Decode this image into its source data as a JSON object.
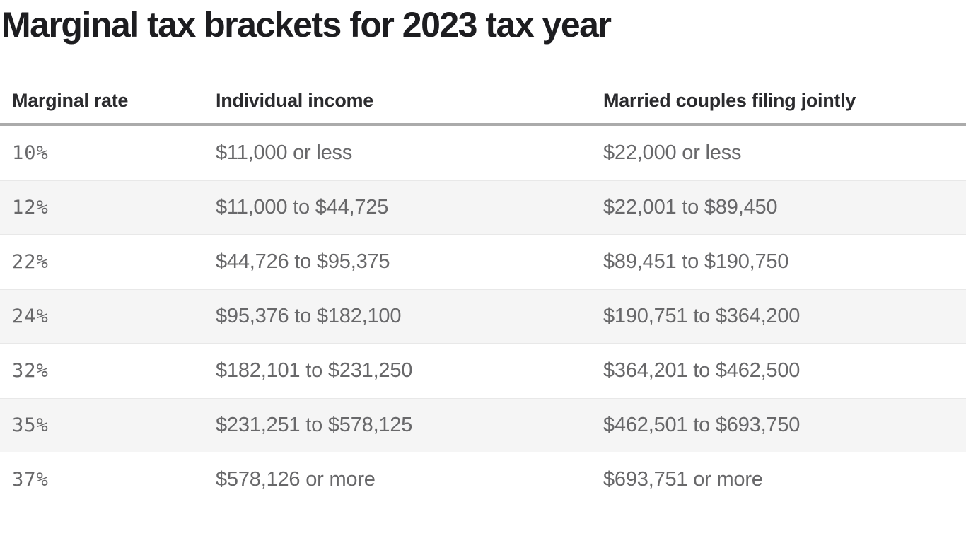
{
  "title": "Marginal tax brackets for 2023 tax year",
  "colors": {
    "title_text": "#1d1d20",
    "header_text": "#2b2b2e",
    "cell_text": "#68686a",
    "stripe_background": "#f5f5f5",
    "stripe_border": "#e8e8e8",
    "header_rule": "#ababab",
    "page_background": "#ffffff"
  },
  "chart_data": {
    "type": "table",
    "title": "Marginal tax brackets for 2023 tax year",
    "columns": [
      "Marginal rate",
      "Individual income",
      "Married couples filing jointly"
    ],
    "rows": [
      {
        "rate": "10%",
        "individual": "$11,000 or less",
        "married": "$22,000 or less"
      },
      {
        "rate": "12%",
        "individual": "$11,000 to $44,725",
        "married": "$22,001 to $89,450"
      },
      {
        "rate": "22%",
        "individual": "$44,726 to $95,375",
        "married": "$89,451 to $190,750"
      },
      {
        "rate": "24%",
        "individual": "$95,376 to $182,100",
        "married": "$190,751 to $364,200"
      },
      {
        "rate": "32%",
        "individual": "$182,101 to $231,250",
        "married": "$364,201 to $462,500"
      },
      {
        "rate": "35%",
        "individual": "$231,251 to $578,125",
        "married": "$462,501 to $693,750"
      },
      {
        "rate": "37%",
        "individual": "$578,126 or more",
        "married": "$693,751 or more"
      }
    ],
    "layout": {
      "zebra_striping": true,
      "striped_row_indexes": [
        1,
        3,
        5
      ],
      "header_rule_thickness_px": 4
    }
  }
}
